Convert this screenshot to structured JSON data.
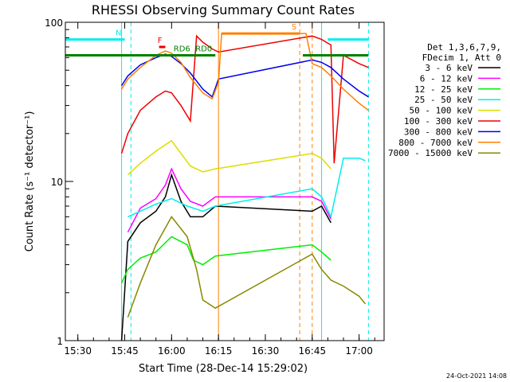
{
  "chart_data": {
    "type": "line",
    "title": "RHESSI Observing Summary Count Rates",
    "xlabel": "Start Time (28-Dec-14 15:29:02)",
    "ylabel": "Count Rate (s⁻¹ detector⁻¹)",
    "yscale": "log",
    "ylim": [
      1,
      100
    ],
    "xlim": [
      "15:26",
      "17:08"
    ],
    "x_ticks": [
      "15:30",
      "15:45",
      "16:00",
      "16:15",
      "16:30",
      "16:45",
      "17:00"
    ],
    "y_ticks": [
      "1",
      "10",
      "100"
    ],
    "legend_header": [
      "Det 1,3,6,7,9,",
      "FDecim 1, Att 0"
    ],
    "legend_position": "right",
    "footer": "24-Oct-2021 14:08",
    "colors": {
      "3-6": "#000000",
      "6-12": "#ff00ff",
      "12-25": "#00ee00",
      "25-50": "#00eeee",
      "50-100": "#dddd00",
      "100-300": "#ee0000",
      "300-800": "#0000ee",
      "800-7000": "#ff8000",
      "7000-15000": "#888800"
    },
    "series": [
      {
        "name": "3 - 6 keV",
        "key": "3-6",
        "x": [
          "15:44",
          "15:46",
          "15:50",
          "15:55",
          "15:58",
          "16:00",
          "16:03",
          "16:06",
          "16:10",
          "16:14",
          "16:45",
          "16:48",
          "16:51"
        ],
        "values": [
          1.0,
          4.2,
          5.5,
          6.5,
          8.0,
          11.0,
          7.5,
          6.0,
          6.0,
          7.0,
          6.5,
          7.0,
          5.5
        ]
      },
      {
        "name": "6 - 12 keV",
        "key": "6-12",
        "x": [
          "15:46",
          "15:50",
          "15:55",
          "15:58",
          "16:00",
          "16:03",
          "16:06",
          "16:10",
          "16:14",
          "16:45",
          "16:48",
          "16:51"
        ],
        "values": [
          4.8,
          6.8,
          7.8,
          9.5,
          12.0,
          9.0,
          7.5,
          7.0,
          8.0,
          8.0,
          7.5,
          5.8
        ]
      },
      {
        "name": "12 - 25 keV",
        "key": "12-25",
        "x": [
          "15:44",
          "15:46",
          "15:50",
          "15:55",
          "16:00",
          "16:05",
          "16:07",
          "16:10",
          "16:14",
          "16:45",
          "16:48",
          "16:51"
        ],
        "values": [
          2.3,
          2.8,
          3.3,
          3.6,
          4.5,
          4.0,
          3.2,
          3.0,
          3.4,
          4.0,
          3.6,
          3.2
        ]
      },
      {
        "name": "25 - 50 keV",
        "key": "25-50",
        "x": [
          "15:46",
          "15:50",
          "15:55",
          "16:00",
          "16:05",
          "16:07",
          "16:10",
          "16:14",
          "16:45",
          "16:48",
          "16:51",
          "16:55",
          "17:00",
          "17:02"
        ],
        "values": [
          6.0,
          6.5,
          7.2,
          7.8,
          7.0,
          6.8,
          6.5,
          7.0,
          9.0,
          8.0,
          6.0,
          14.0,
          14.0,
          13.5
        ]
      },
      {
        "name": "50 - 100 keV",
        "key": "50-100",
        "x": [
          "15:46",
          "15:50",
          "15:55",
          "15:58",
          "16:00",
          "16:03",
          "16:06",
          "16:10",
          "16:14",
          "16:45",
          "16:48",
          "16:51"
        ],
        "values": [
          11.0,
          13.0,
          15.5,
          17.0,
          18.0,
          15.0,
          12.5,
          11.5,
          12.0,
          15.0,
          14.0,
          12.0
        ]
      },
      {
        "name": "100 - 300 keV",
        "key": "100-300",
        "x": [
          "15:44",
          "15:46",
          "15:50",
          "15:55",
          "15:58",
          "16:00",
          "16:03",
          "16:06",
          "16:08",
          "16:10",
          "16:13",
          "16:15",
          "16:45",
          "16:48",
          "16:51",
          "16:52",
          "16:55",
          "17:00",
          "17:03"
        ],
        "values": [
          15.0,
          20.0,
          28.0,
          34.0,
          37.0,
          36.0,
          30.0,
          24.0,
          82.0,
          75.0,
          68.0,
          65.0,
          82.0,
          78.0,
          72.0,
          13.0,
          62.0,
          55.0,
          52.0
        ]
      },
      {
        "name": "300 - 800 keV",
        "key": "300-800",
        "x": [
          "15:44",
          "15:46",
          "15:50",
          "15:55",
          "15:58",
          "16:00",
          "16:03",
          "16:06",
          "16:10",
          "16:13",
          "16:15",
          "16:45",
          "16:48",
          "16:51",
          "16:55",
          "17:00",
          "17:03"
        ],
        "values": [
          40.0,
          46.0,
          54.0,
          60.0,
          63.0,
          61.0,
          55.0,
          48.0,
          38.0,
          34.0,
          44.0,
          58.0,
          56.0,
          52.0,
          44.0,
          37.0,
          34.0
        ]
      },
      {
        "name": "800 - 7000 keV",
        "key": "800-7000",
        "x": [
          "15:44",
          "15:46",
          "15:50",
          "15:55",
          "15:58",
          "16:00",
          "16:03",
          "16:06",
          "16:10",
          "16:13",
          "16:15",
          "16:16",
          "16:43",
          "16:45",
          "16:48",
          "16:51",
          "16:55",
          "17:00",
          "17:03"
        ],
        "values": [
          38.0,
          44.0,
          52.0,
          62.0,
          66.0,
          64.0,
          56.0,
          45.0,
          36.0,
          33.0,
          42.0,
          85.0,
          85.0,
          55.0,
          52.0,
          46.0,
          38.0,
          31.0,
          28.0
        ]
      },
      {
        "name": "7000 - 15000 keV",
        "key": "7000-15000",
        "x": [
          "15:46",
          "15:50",
          "15:55",
          "16:00",
          "16:05",
          "16:08",
          "16:10",
          "16:14",
          "16:45",
          "16:48",
          "16:51",
          "16:55",
          "17:00",
          "17:02"
        ],
        "values": [
          1.4,
          2.3,
          4.0,
          6.0,
          4.5,
          2.8,
          1.8,
          1.6,
          3.5,
          2.8,
          2.4,
          2.2,
          1.9,
          1.7
        ]
      }
    ],
    "flags": [
      {
        "label": "N",
        "color": "#00eeee",
        "y": 78,
        "x_start": "15:26",
        "x_end": "15:45"
      },
      {
        "label": "",
        "color": "#00eeee",
        "y": 78,
        "x_start": "16:50",
        "x_end": "17:03"
      },
      {
        "label": "RD0",
        "color": "#008000",
        "y": 62,
        "x_start": "15:42",
        "x_end": "16:14"
      },
      {
        "label": "RD6",
        "color": "#008000",
        "y": 62,
        "x_start": "15:26",
        "x_end": "16:07"
      },
      {
        "label": "",
        "color": "#008000",
        "y": 62,
        "x_start": "16:42",
        "x_end": "17:03"
      },
      {
        "label": "F",
        "color": "#ee0000",
        "y": 70,
        "x_start": "15:56",
        "x_end": "15:58"
      },
      {
        "label": "S",
        "color": "#ff8000",
        "y": 85,
        "x_start": "16:16",
        "x_end": "16:41"
      }
    ],
    "vlines": [
      {
        "x": "15:44",
        "color": "#00eeee",
        "dashed": false
      },
      {
        "x": "15:47",
        "color": "#00eeee",
        "dashed": true
      },
      {
        "x": "16:15",
        "color": "#ff8000",
        "dashed": false
      },
      {
        "x": "16:41",
        "color": "#ff8000",
        "dashed": true
      },
      {
        "x": "16:45",
        "color": "#ff8000",
        "dashed": true
      },
      {
        "x": "16:48",
        "color": "#00eeee",
        "dashed": false
      },
      {
        "x": "17:03",
        "color": "#00eeee",
        "dashed": true
      }
    ]
  }
}
